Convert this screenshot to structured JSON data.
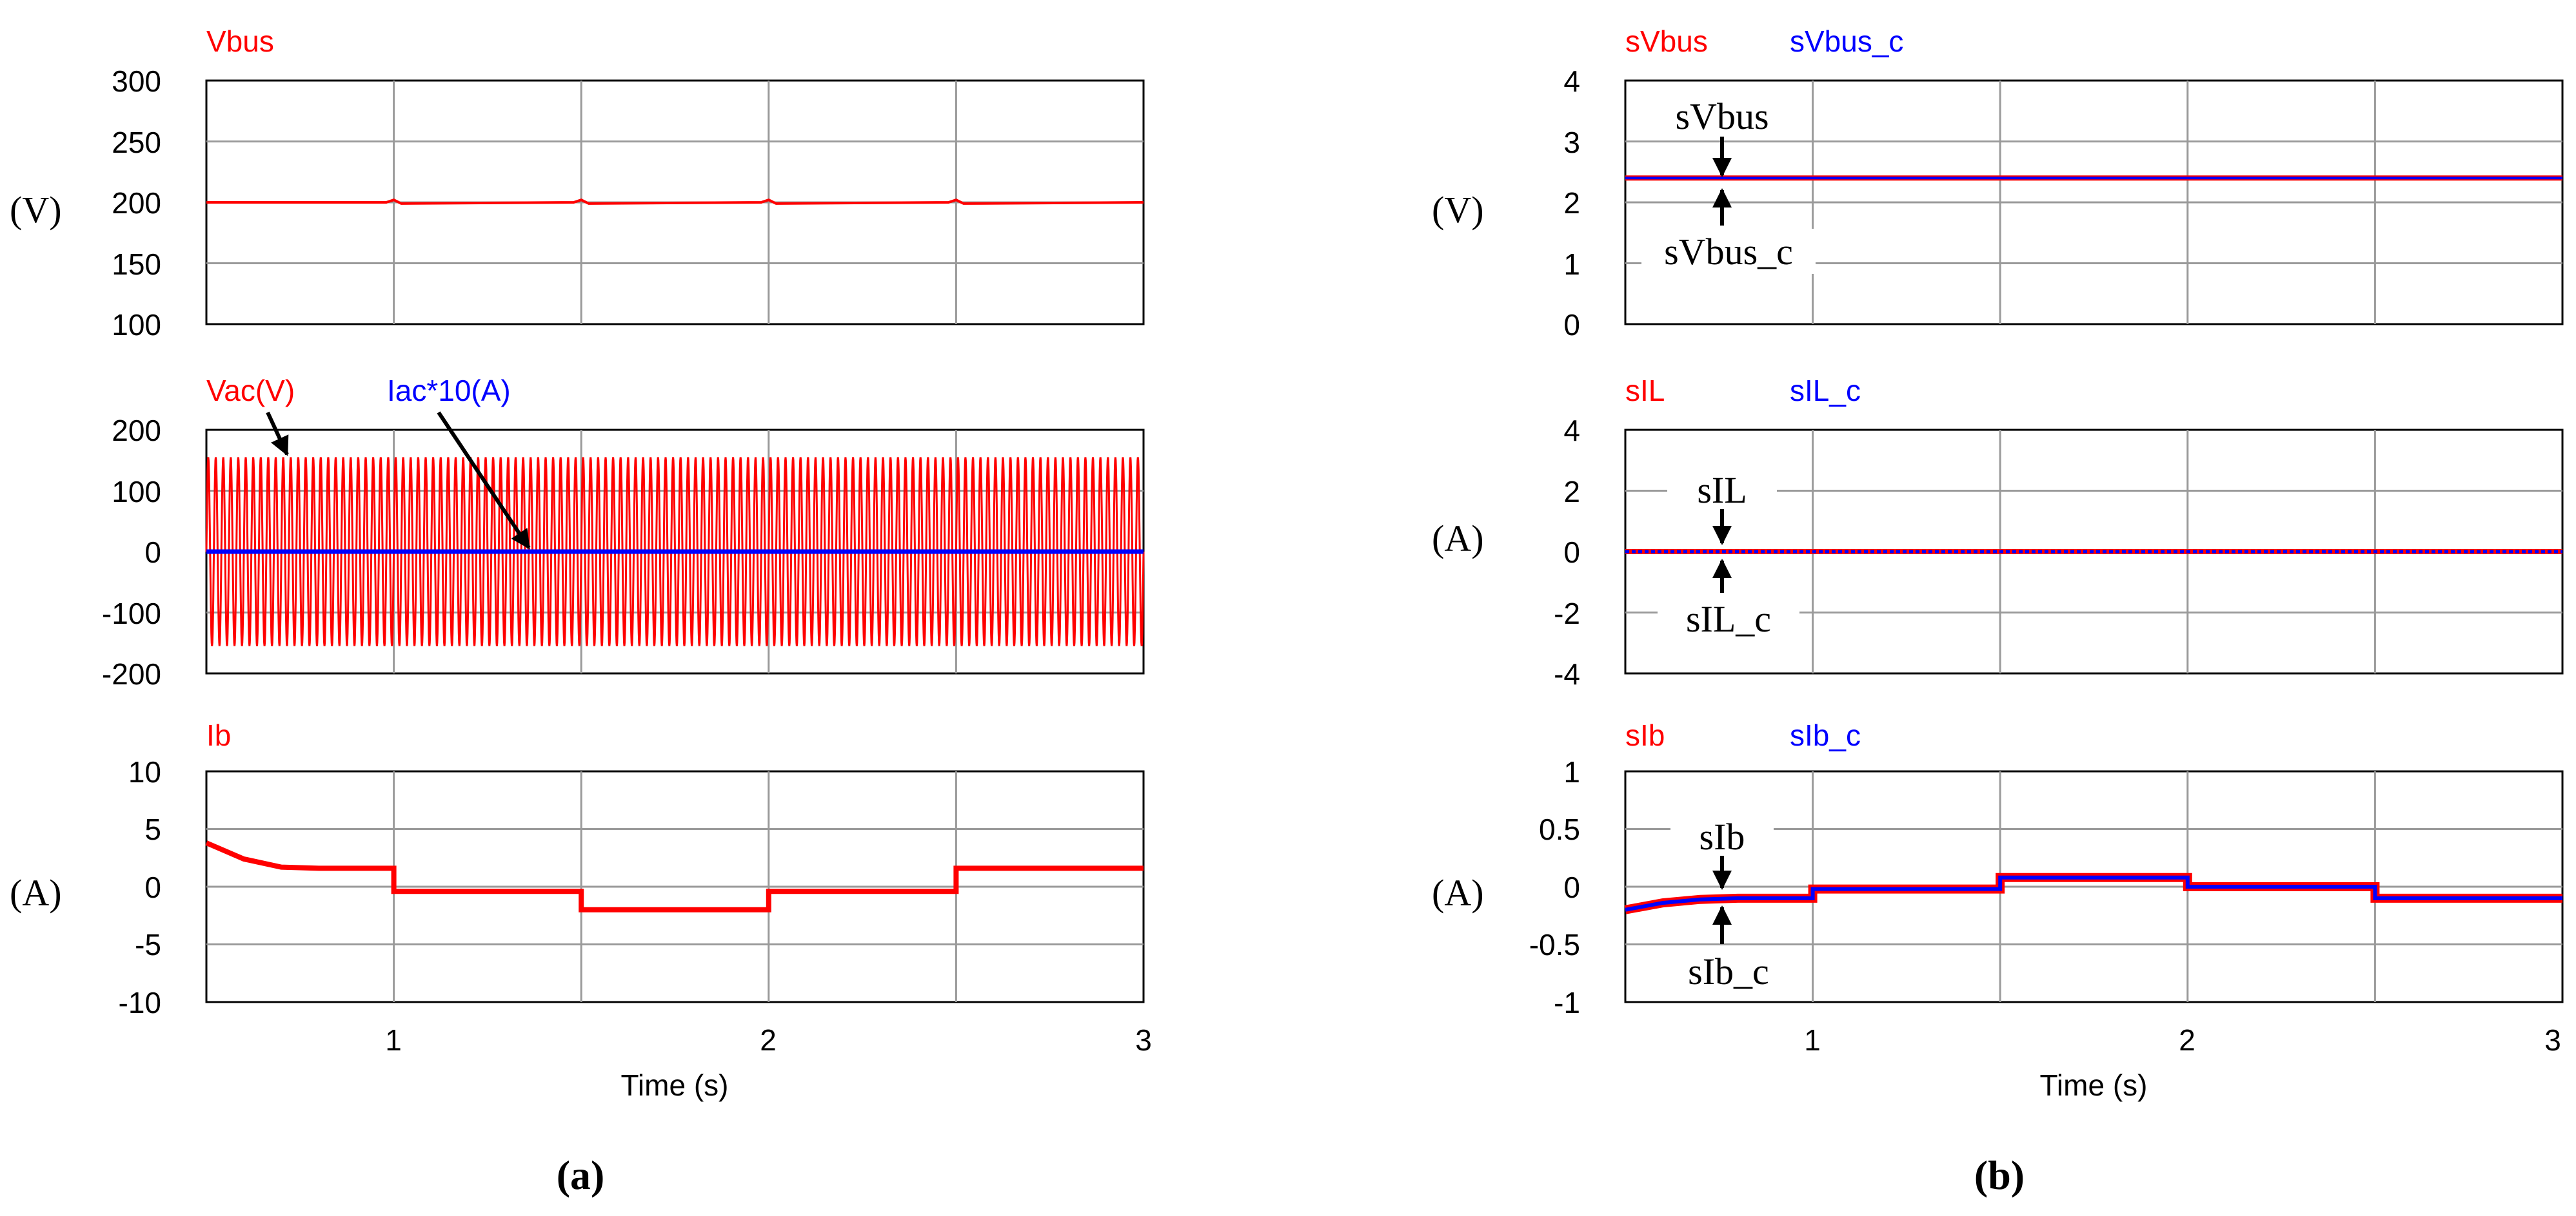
{
  "colors": {
    "red": "#ff0000",
    "blue": "#0000ff",
    "grid": "#9a9a9a",
    "axis": "#000000"
  },
  "chart_data": [
    {
      "type": "line",
      "panel": "a-1",
      "legend": [
        "Vbus"
      ],
      "ylabel": "(V)",
      "x": [
        0.5,
        0.98,
        1.0,
        1.02,
        1.48,
        1.5,
        1.52,
        1.98,
        2.0,
        2.02,
        2.48,
        2.5,
        2.52,
        3.0
      ],
      "xlim": [
        0.5,
        3.0
      ],
      "ylim": [
        100,
        300
      ],
      "yticks": [
        "300",
        "250",
        "200",
        "150",
        "100"
      ],
      "xticks": [],
      "xlabel": "",
      "series": [
        {
          "name": "Vbus",
          "color": "red",
          "values": [
            200,
            200,
            202,
            199,
            200,
            202,
            199,
            200,
            202,
            199,
            200,
            202,
            199,
            200
          ]
        }
      ]
    },
    {
      "type": "line",
      "panel": "a-2",
      "legend": [
        "Vac(V)",
        "Iac*10(A)"
      ],
      "ylabel": "",
      "xlim": [
        0.5,
        3.0
      ],
      "ylim": [
        -200,
        200
      ],
      "yticks": [
        "200",
        "100",
        "0",
        "-100",
        "-200"
      ],
      "xticks": [],
      "xlabel": "",
      "series": [
        {
          "name": "Vac",
          "color": "red",
          "kind": "sine",
          "amplitude": 155,
          "cycles": 125
        },
        {
          "name": "Iac*10",
          "color": "blue",
          "kind": "flat",
          "value": 0
        }
      ],
      "annotations": []
    },
    {
      "type": "line",
      "panel": "a-3",
      "legend": [
        "Ib"
      ],
      "ylabel": "(A)",
      "x": [
        0.5,
        0.6,
        0.7,
        0.8,
        1.0,
        1.0,
        1.5,
        1.5,
        2.0,
        2.0,
        2.5,
        2.5,
        3.0
      ],
      "xlim": [
        0.5,
        3.0
      ],
      "ylim": [
        -10,
        10
      ],
      "yticks": [
        "10",
        "5",
        "0",
        "-5",
        "-10"
      ],
      "xticks": [
        "1",
        "2",
        "3"
      ],
      "xlabel": "Time (s)",
      "series": [
        {
          "name": "Ib",
          "color": "red",
          "values": [
            3.8,
            2.4,
            1.7,
            1.6,
            1.6,
            -0.4,
            -0.4,
            -2.0,
            -2.0,
            -0.4,
            -0.4,
            1.6,
            1.6
          ]
        }
      ]
    },
    {
      "type": "line",
      "panel": "b-1",
      "legend": [
        "sVbus",
        "sVbus_c"
      ],
      "ylabel": "(V)",
      "x": [
        0.5,
        3.0
      ],
      "xlim": [
        0.5,
        3.0
      ],
      "ylim": [
        0,
        4
      ],
      "yticks": [
        "4",
        "3",
        "2",
        "1",
        "0"
      ],
      "xticks": [],
      "xlabel": "",
      "series": [
        {
          "name": "sVbus",
          "color": "red",
          "values": [
            2.4,
            2.4
          ]
        },
        {
          "name": "sVbus_c",
          "color": "blue",
          "values": [
            2.4,
            2.4
          ]
        }
      ],
      "annotations": [
        "sVbus",
        "sVbus_c"
      ]
    },
    {
      "type": "line",
      "panel": "b-2",
      "legend": [
        "sIL",
        "sIL_c"
      ],
      "ylabel": "(A)",
      "x": [
        0.5,
        3.0
      ],
      "xlim": [
        0.5,
        3.0
      ],
      "ylim": [
        -4,
        4
      ],
      "yticks": [
        "4",
        "2",
        "0",
        "-2",
        "-4"
      ],
      "xticks": [],
      "xlabel": "",
      "series": [
        {
          "name": "sIL",
          "color": "red",
          "values": [
            0,
            0
          ]
        },
        {
          "name": "sIL_c",
          "color": "blue",
          "values": [
            0,
            0
          ]
        }
      ],
      "annotations": [
        "sIL",
        "sIL_c"
      ]
    },
    {
      "type": "line",
      "panel": "b-3",
      "legend": [
        "sIb",
        "sIb_c"
      ],
      "ylabel": "(A)",
      "x": [
        0.5,
        0.6,
        0.7,
        0.8,
        1.0,
        1.0,
        1.5,
        1.5,
        2.0,
        2.0,
        2.5,
        2.5,
        3.0
      ],
      "xlim": [
        0.5,
        3.0
      ],
      "ylim": [
        -1,
        1
      ],
      "yticks": [
        "1",
        "0.5",
        "0",
        "-0.5",
        "-1"
      ],
      "xticks": [
        "1",
        "2",
        "3"
      ],
      "xlabel": "Time (s)",
      "series": [
        {
          "name": "sIb",
          "color": "red",
          "values": [
            -0.2,
            -0.14,
            -0.11,
            -0.1,
            -0.1,
            -0.02,
            -0.02,
            0.08,
            0.08,
            0.0,
            0.0,
            -0.1,
            -0.1
          ]
        },
        {
          "name": "sIb_c",
          "color": "blue",
          "values": [
            -0.2,
            -0.14,
            -0.11,
            -0.1,
            -0.1,
            -0.02,
            -0.02,
            0.08,
            0.08,
            0.0,
            0.0,
            -0.1,
            -0.1
          ]
        }
      ],
      "annotations": [
        "sIb",
        "sIb_c"
      ]
    }
  ],
  "subfigure_labels": {
    "a": "(a)",
    "b": "(b)"
  }
}
